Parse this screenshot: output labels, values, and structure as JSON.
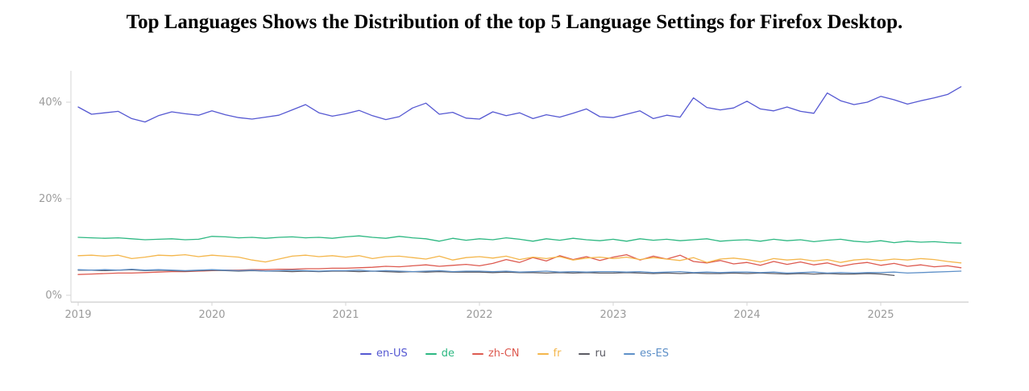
{
  "title": "Top Languages Shows the Distribution of the top 5 Language Settings for Firefox Desktop.",
  "axis": {
    "y_tick_labels": [
      "0%",
      "20%",
      "40%"
    ],
    "y_tick_values": [
      0,
      20,
      40
    ],
    "x_tick_labels": [
      "2019",
      "2020",
      "2021",
      "2022",
      "2023",
      "2024",
      "2025"
    ],
    "x_tick_values": [
      2019,
      2020,
      2021,
      2022,
      2023,
      2024,
      2025
    ],
    "axis_line_color": "#d4d4d4",
    "tick_label_color": "#9b9b9b"
  },
  "chart_data": {
    "type": "line",
    "title": "Top Languages Shows the Distribution of the top 5 Language Settings for Firefox Desktop.",
    "xlabel": "",
    "ylabel": "",
    "xlim": [
      2019.0,
      2025.65
    ],
    "ylim": [
      0,
      46.5
    ],
    "grid": false,
    "legend_position": "bottom",
    "x_start": 2019.0,
    "x_step": 0.1,
    "series": [
      {
        "name": "en-US",
        "color": "#5558d2",
        "values": [
          39.0,
          37.5,
          37.8,
          38.1,
          36.6,
          35.9,
          37.2,
          38.0,
          37.6,
          37.3,
          38.2,
          37.4,
          36.8,
          36.5,
          36.9,
          37.3,
          38.4,
          39.5,
          37.8,
          37.1,
          37.6,
          38.3,
          37.2,
          36.4,
          37.0,
          38.8,
          39.8,
          37.5,
          37.9,
          36.7,
          36.5,
          38.0,
          37.2,
          37.8,
          36.6,
          37.4,
          36.9,
          37.7,
          38.6,
          37.0,
          36.8,
          37.5,
          38.2,
          36.6,
          37.3,
          36.9,
          40.9,
          38.9,
          38.4,
          38.8,
          40.2,
          38.6,
          38.2,
          39.0,
          38.1,
          37.7,
          41.9,
          40.3,
          39.5,
          40.0,
          41.2,
          40.5,
          39.6,
          40.3,
          40.9,
          41.6,
          43.2
        ]
      },
      {
        "name": "de",
        "color": "#2db882",
        "values": [
          12.0,
          11.9,
          11.8,
          11.9,
          11.7,
          11.5,
          11.6,
          11.7,
          11.5,
          11.6,
          12.2,
          12.1,
          11.9,
          12.0,
          11.8,
          12.0,
          12.1,
          11.9,
          12.0,
          11.8,
          12.1,
          12.3,
          12.0,
          11.8,
          12.2,
          11.9,
          11.7,
          11.2,
          11.8,
          11.4,
          11.7,
          11.5,
          11.9,
          11.6,
          11.2,
          11.7,
          11.4,
          11.8,
          11.5,
          11.3,
          11.6,
          11.2,
          11.7,
          11.4,
          11.6,
          11.3,
          11.5,
          11.7,
          11.2,
          11.4,
          11.5,
          11.2,
          11.6,
          11.3,
          11.5,
          11.1,
          11.4,
          11.6,
          11.2,
          11.0,
          11.3,
          10.9,
          11.2,
          11.0,
          11.1,
          10.9,
          10.8
        ]
      },
      {
        "name": "zh-CN",
        "color": "#dd5a50",
        "values": [
          4.3,
          4.4,
          4.5,
          4.6,
          4.6,
          4.7,
          4.8,
          4.9,
          4.9,
          5.0,
          5.1,
          5.2,
          5.2,
          5.3,
          5.3,
          5.4,
          5.4,
          5.5,
          5.5,
          5.6,
          5.6,
          5.7,
          5.8,
          6.0,
          5.9,
          6.1,
          6.3,
          6.0,
          6.2,
          6.4,
          6.1,
          6.6,
          7.4,
          6.8,
          7.8,
          7.1,
          8.2,
          7.4,
          8.0,
          7.2,
          7.9,
          8.4,
          7.3,
          8.1,
          7.5,
          8.3,
          7.0,
          6.7,
          7.2,
          6.5,
          6.8,
          6.2,
          7.0,
          6.4,
          6.9,
          6.3,
          6.7,
          6.0,
          6.5,
          6.8,
          6.2,
          6.6,
          6.0,
          6.3,
          5.9,
          6.1,
          5.7
        ]
      },
      {
        "name": "fr",
        "color": "#f4b64b",
        "values": [
          8.2,
          8.3,
          8.1,
          8.3,
          7.6,
          7.9,
          8.3,
          8.2,
          8.4,
          8.0,
          8.3,
          8.1,
          7.9,
          7.3,
          6.9,
          7.5,
          8.1,
          8.3,
          8.0,
          8.2,
          7.9,
          8.2,
          7.6,
          8.0,
          8.1,
          7.8,
          7.5,
          8.1,
          7.3,
          7.8,
          8.0,
          7.7,
          8.1,
          7.4,
          7.9,
          7.6,
          8.0,
          7.3,
          7.7,
          7.9,
          7.6,
          7.9,
          7.4,
          7.8,
          7.5,
          7.2,
          7.8,
          6.8,
          7.5,
          7.7,
          7.4,
          6.9,
          7.6,
          7.3,
          7.5,
          7.1,
          7.4,
          6.8,
          7.3,
          7.5,
          7.2,
          7.5,
          7.3,
          7.6,
          7.4,
          7.0,
          6.7
        ]
      },
      {
        "name": "ru",
        "color": "#5a5a63",
        "values": [
          5.2,
          5.2,
          5.1,
          5.2,
          5.3,
          5.1,
          5.2,
          5.1,
          5.0,
          5.1,
          5.2,
          5.1,
          5.0,
          5.1,
          5.0,
          5.0,
          4.9,
          5.0,
          4.9,
          5.0,
          5.0,
          4.9,
          5.0,
          4.9,
          4.8,
          4.9,
          4.8,
          4.9,
          4.8,
          4.8,
          4.8,
          4.7,
          4.8,
          4.7,
          4.7,
          4.6,
          4.7,
          4.6,
          4.7,
          4.6,
          4.6,
          4.7,
          4.6,
          4.5,
          4.6,
          4.5,
          4.6,
          4.5,
          4.5,
          4.6,
          4.5,
          4.6,
          4.5,
          4.4,
          4.5,
          4.4,
          4.5,
          4.4,
          4.4,
          4.5,
          4.4,
          4.1
        ]
      },
      {
        "name": "es-ES",
        "color": "#5e90c8",
        "values": [
          5.3,
          5.2,
          5.3,
          5.2,
          5.4,
          5.2,
          5.3,
          5.2,
          5.1,
          5.2,
          5.3,
          5.2,
          5.1,
          5.2,
          5.0,
          5.1,
          5.2,
          5.1,
          5.0,
          5.1,
          5.1,
          5.2,
          5.0,
          5.1,
          5.0,
          4.9,
          5.0,
          5.1,
          4.9,
          5.0,
          5.0,
          4.9,
          5.0,
          4.8,
          4.9,
          5.0,
          4.8,
          4.9,
          4.8,
          4.9,
          4.9,
          4.8,
          4.9,
          4.7,
          4.8,
          4.9,
          4.7,
          4.8,
          4.7,
          4.8,
          4.8,
          4.7,
          4.8,
          4.6,
          4.7,
          4.8,
          4.6,
          4.7,
          4.6,
          4.7,
          4.7,
          4.8,
          4.6,
          4.7,
          4.8,
          4.9,
          5.0
        ]
      }
    ]
  }
}
